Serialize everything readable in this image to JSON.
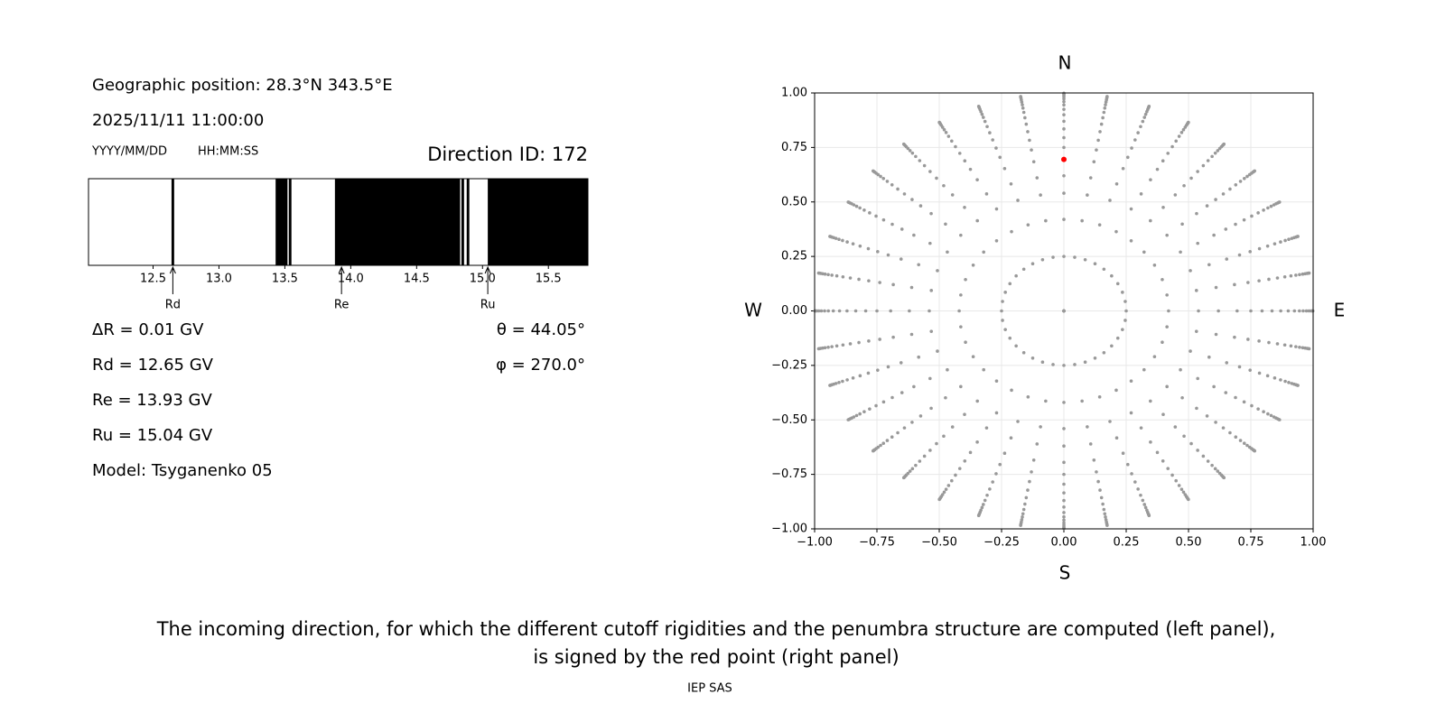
{
  "info": {
    "position": "Geographic position: 28.3°N 343.5°E",
    "datetime": "2025/11/11 11:00:00",
    "date_format": "YYYY/MM/DD",
    "time_format": "HH:MM:SS",
    "direction_id": "Direction ID: 172",
    "delta_r": "ΔR = 0.01 GV",
    "theta": "θ = 44.05°",
    "phi": "φ = 270.0°",
    "model": "Model: Tsyganenko 05"
  },
  "penumbra": {
    "type": "penumbra",
    "xlim": [
      12.01,
      15.8
    ],
    "xticks": [
      12.5,
      {
        "value": 13,
        "label": "13.0"
      },
      13.5,
      {
        "value": 14,
        "label": "14.0"
      },
      14.5,
      {
        "value": 15,
        "label": "15.0"
      },
      15.5
    ],
    "color": "#000000",
    "forbidden": [
      [
        12.64,
        12.66
      ],
      [
        13.43,
        13.52
      ],
      [
        13.53,
        13.55
      ],
      [
        13.88,
        14.83
      ],
      [
        14.84,
        14.86
      ],
      [
        14.88,
        14.9
      ],
      [
        15.04,
        15.8
      ]
    ],
    "cutoffs": [
      {
        "name": "Rd",
        "text": "Rd = 12.65 GV",
        "value": 12.65
      },
      {
        "name": "Re",
        "text": "Re = 13.93 GV",
        "value": 13.93
      },
      {
        "name": "Ru",
        "text": "Ru = 15.04 GV",
        "value": 15.04
      }
    ]
  },
  "skymap": {
    "type": "polar-scatter",
    "north": "N",
    "south": "S",
    "west": "W",
    "east": "E",
    "color": "#999999",
    "grid": true,
    "xlim": [
      -1,
      1
    ],
    "ylim": [
      -1,
      1
    ],
    "xticks": [
      {
        "value": -1,
        "label": "−1.00"
      },
      {
        "value": -0.75,
        "label": "−0.75"
      },
      {
        "value": -0.5,
        "label": "−0.50"
      },
      {
        "value": -0.25,
        "label": "−0.25"
      },
      {
        "value": 0,
        "label": "0.00"
      },
      {
        "value": 0.25,
        "label": "0.25"
      },
      {
        "value": 0.5,
        "label": "0.50"
      },
      {
        "value": 0.75,
        "label": "0.75"
      },
      {
        "value": 1,
        "label": "1.00"
      }
    ],
    "yticks": [
      {
        "value": -1,
        "label": "−1.00"
      },
      {
        "value": -0.75,
        "label": "−0.75"
      },
      {
        "value": -0.5,
        "label": "−0.50"
      },
      {
        "value": -0.25,
        "label": "−0.25"
      },
      {
        "value": 0,
        "label": "0.00"
      },
      {
        "value": 0.25,
        "label": "0.25"
      },
      {
        "value": 0.5,
        "label": "0.50"
      },
      {
        "value": 0.75,
        "label": "0.75"
      },
      {
        "value": 1,
        "label": "1.00"
      }
    ],
    "radii": [
      0,
      0.25,
      0.42,
      0.54,
      0.62,
      0.695,
      0.75,
      0.795,
      0.835,
      0.87,
      0.9,
      0.925,
      0.945,
      0.96,
      0.973,
      0.983,
      0.991,
      0.996,
      0.999
    ],
    "azimuths": [
      0,
      10,
      20,
      30,
      40,
      50,
      60,
      70,
      80,
      90,
      100,
      110,
      120,
      130,
      140,
      150,
      160,
      170,
      180,
      190,
      200,
      210,
      220,
      230,
      240,
      250,
      260,
      270,
      280,
      290,
      300,
      310,
      320,
      330,
      340,
      350
    ],
    "highlight": {
      "x": 0,
      "y": 0.695,
      "color": "#ff0000"
    }
  },
  "caption": [
    "The incoming direction, for which the different cutoff rigidities and the penumbra structure are computed (left panel),",
    "is signed by the red point (right panel)"
  ],
  "footer": "IEP SAS"
}
